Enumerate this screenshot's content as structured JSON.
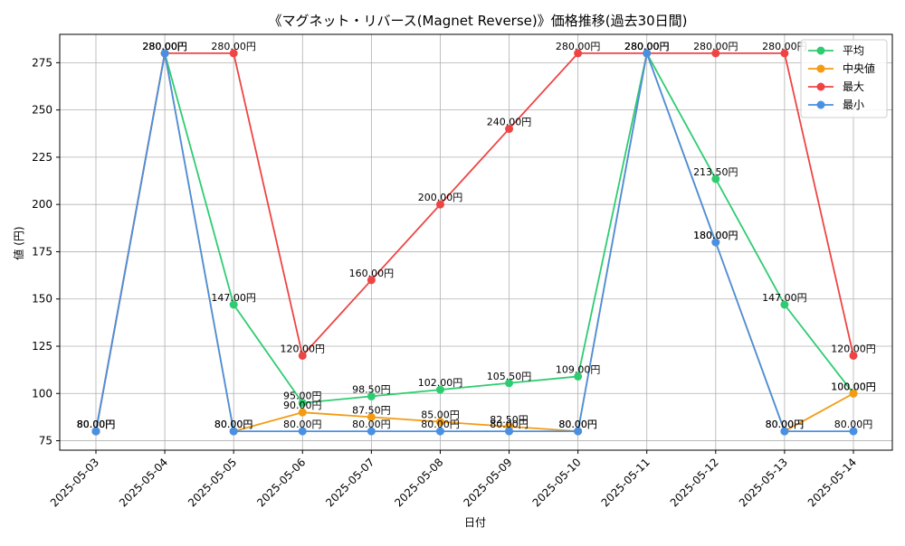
{
  "chart_data": {
    "type": "line",
    "title": "《マグネット・リバース(Magnet Reverse)》価格推移(過去30日間)",
    "xlabel": "日付",
    "ylabel": "値 (円)",
    "ylim": [
      70,
      290
    ],
    "yticks": [
      75,
      100,
      125,
      150,
      175,
      200,
      225,
      250,
      275
    ],
    "grid": true,
    "legend_position": "top-right",
    "value_suffix": "円",
    "categories": [
      "2025-05-03",
      "2025-05-04",
      "2025-05-05",
      "2025-05-06",
      "2025-05-07",
      "2025-05-08",
      "2025-05-09",
      "2025-05-10",
      "2025-05-11",
      "2025-05-12",
      "2025-05-13",
      "2025-05-14"
    ],
    "series": [
      {
        "name": "平均",
        "color": "#2ecc71",
        "values": [
          80,
          280,
          147,
          95,
          98.5,
          102,
          105.5,
          109,
          280,
          213.5,
          147,
          100
        ]
      },
      {
        "name": "中央値",
        "color": "#f39c12",
        "values": [
          80,
          280,
          80,
          90,
          87.5,
          85,
          82.5,
          80,
          280,
          180,
          80,
          100
        ]
      },
      {
        "name": "最大",
        "color": "#ef4444",
        "values": [
          80,
          280,
          280,
          120,
          160,
          200,
          240,
          280,
          280,
          280,
          280,
          120
        ]
      },
      {
        "name": "最小",
        "color": "#4a90e2",
        "values": [
          80,
          280,
          80,
          80,
          80,
          80,
          80,
          80,
          280,
          180,
          80,
          80
        ]
      }
    ]
  }
}
